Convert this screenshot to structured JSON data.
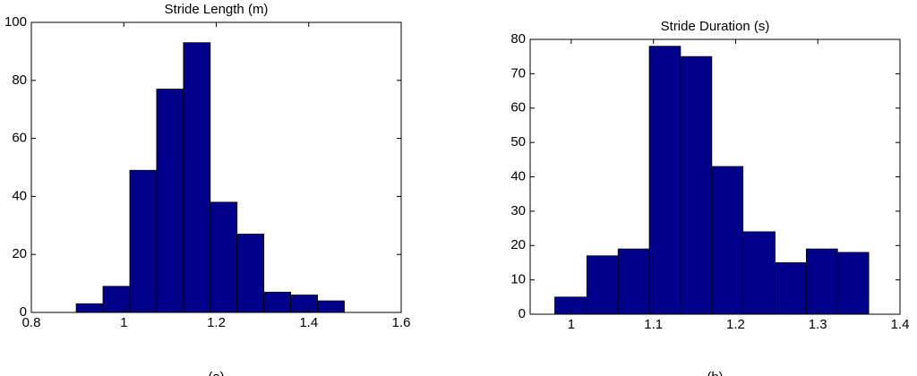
{
  "chart_data": [
    {
      "type": "histogram",
      "title": "Stride Length (m)",
      "caption": "(a)",
      "color": "#00008b",
      "bins": [
        0.897,
        0.955,
        1.013,
        1.071,
        1.129,
        1.187,
        1.245,
        1.303,
        1.361,
        1.419,
        1.477
      ],
      "values": [
        3,
        9,
        49,
        77,
        93,
        38,
        27,
        7,
        6,
        4
      ],
      "xlim": [
        0.8,
        1.6
      ],
      "xticks": [
        0.8,
        1,
        1.2,
        1.4,
        1.6
      ],
      "ylim": [
        0,
        100
      ],
      "yticks": [
        0,
        20,
        40,
        60,
        80,
        100
      ]
    },
    {
      "type": "histogram",
      "title": "Stride Duration (s)",
      "caption": "(b)",
      "color": "#00008b",
      "bins": [
        0.98,
        1.019,
        1.057,
        1.095,
        1.133,
        1.171,
        1.209,
        1.248,
        1.286,
        1.324,
        1.362
      ],
      "values": [
        5,
        17,
        19,
        78,
        75,
        43,
        24,
        15,
        19,
        18
      ],
      "xlim": [
        0.95,
        1.4
      ],
      "xticks": [
        1,
        1.1,
        1.2,
        1.3,
        1.4
      ],
      "ylim": [
        0,
        80
      ],
      "yticks": [
        0,
        10,
        20,
        30,
        40,
        50,
        60,
        70,
        80
      ]
    }
  ]
}
